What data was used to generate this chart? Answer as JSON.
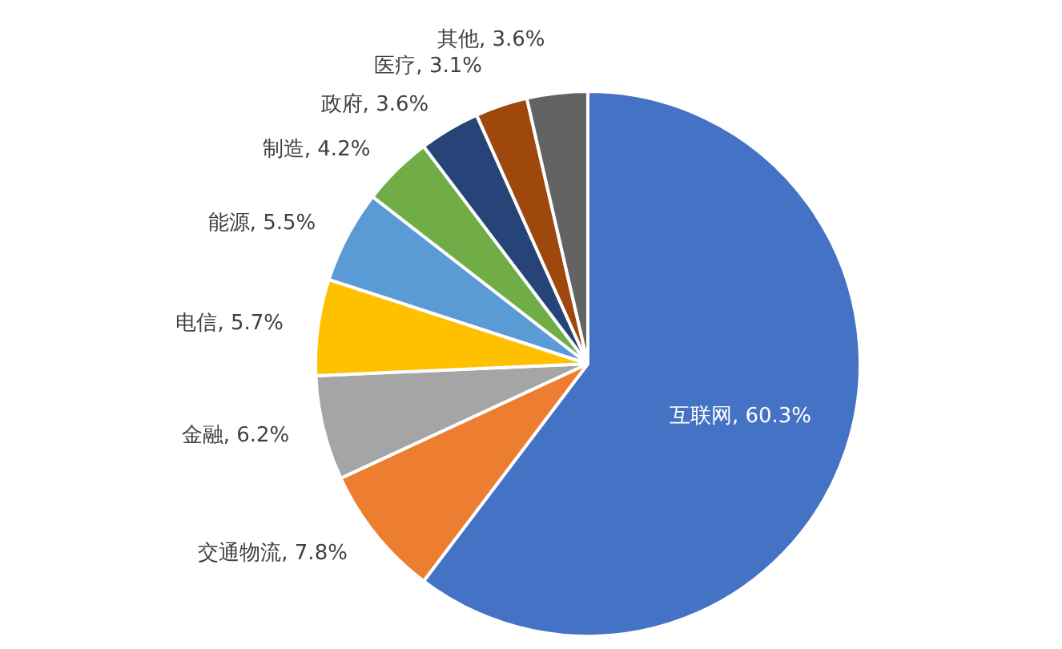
{
  "chart_data": {
    "type": "pie",
    "categories": [
      "互联网",
      "交通物流",
      "金融",
      "电信",
      "能源",
      "制造",
      "政府",
      "医疗",
      "其他"
    ],
    "values": [
      60.3,
      7.8,
      6.2,
      5.7,
      5.5,
      4.2,
      3.6,
      3.1,
      3.6
    ],
    "colors": [
      "#4472c4",
      "#ed7d31",
      "#a5a5a5",
      "#ffc000",
      "#5b9bd5",
      "#70ad47",
      "#264478",
      "#9e480e",
      "#636363"
    ],
    "value_labels": [
      ", 60.3%",
      ", 7.8%",
      ", 6.2%",
      ", 5.7%",
      ", 5.5%",
      ", 4.2%",
      ", 3.6%",
      ", 3.1%",
      ", 3.6%"
    ]
  }
}
